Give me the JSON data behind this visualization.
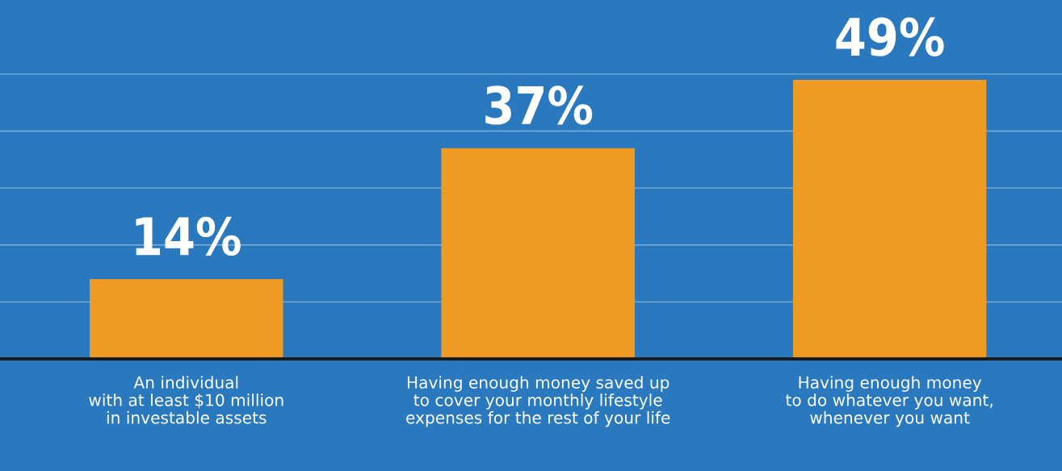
{
  "chart_data": {
    "type": "bar",
    "categories": [
      "An individual\nwith at least $10 million\nin investable assets",
      "Having enough money saved up\nto cover your monthly lifestyle\nexpenses for the rest of your life",
      "Having enough money\nto do whatever you want,\nwhenever you want"
    ],
    "values": [
      14,
      37,
      49
    ],
    "color": "#ef9a22",
    "value_labels": [
      "14%",
      "37%",
      "49%"
    ],
    "ylim": [
      0,
      63
    ],
    "yticks": [
      {
        "value": 10,
        "label": null
      },
      {
        "value": 20,
        "label": null
      },
      {
        "value": 30,
        "label": null
      },
      {
        "value": 40,
        "label": null
      },
      {
        "value": 50,
        "label": null
      }
    ],
    "tick_labels": "x",
    "grid": "y",
    "legend": false
  }
}
